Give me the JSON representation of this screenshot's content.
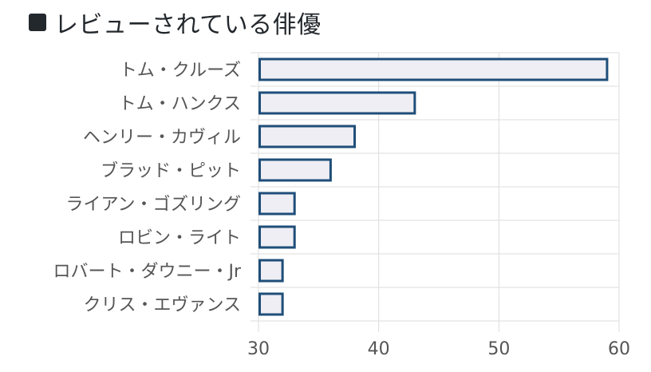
{
  "header": {
    "title": "レビューされている俳優",
    "icon": "square-icon"
  },
  "chart_data": {
    "type": "bar",
    "orientation": "horizontal",
    "title": "",
    "xlabel": "",
    "ylabel": "",
    "categories": [
      "トム・クルーズ",
      "トム・ハンクス",
      "ヘンリー・カヴィル",
      "ブラッド・ピット",
      "ライアン・ゴズリング",
      "ロビン・ライト",
      "ロバート・ダウニー・Jr",
      "クリス・エヴァンス"
    ],
    "values": [
      59,
      43,
      38,
      36,
      33,
      33,
      32,
      32
    ],
    "xlim": [
      30,
      60
    ],
    "xticks": [
      "30",
      "40",
      "50",
      "60"
    ],
    "grid": true,
    "legend": "none",
    "bar_fill": "#eeeef4",
    "bar_stroke": "#1f4e79",
    "grid_color": "#dddddd"
  }
}
